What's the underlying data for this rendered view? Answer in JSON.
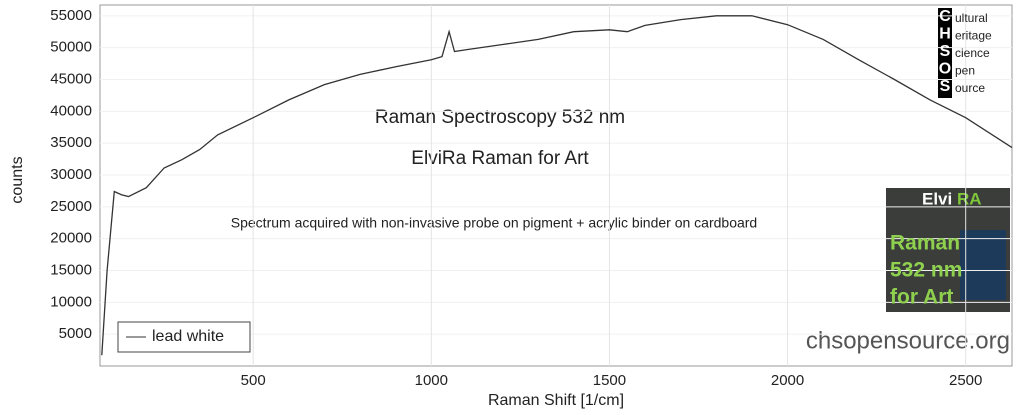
{
  "chart_data": {
    "type": "line",
    "x_label": "Raman Shift [1/cm]",
    "y_label": "counts",
    "annotations": [
      "Raman Spectroscopy 532 nm",
      "ElviRa Raman for Art",
      "Spectrum acquired with non-invasive probe on pigment + acrylic binder on cardboard"
    ],
    "x": [
      75,
      90,
      110,
      130,
      150,
      200,
      250,
      300,
      350,
      400,
      500,
      600,
      700,
      800,
      900,
      1000,
      1030,
      1050,
      1065,
      1100,
      1200,
      1300,
      1400,
      1500,
      1550,
      1600,
      1700,
      1800,
      1900,
      2000,
      2100,
      2200,
      2300,
      2400,
      2500,
      2630
    ],
    "series": [
      {
        "name": "lead white",
        "color": "#333333",
        "values": [
          1700,
          15000,
          27400,
          26900,
          26600,
          28000,
          31100,
          32400,
          34000,
          36300,
          39000,
          41800,
          44200,
          45800,
          47000,
          48100,
          48600,
          52500,
          49400,
          49700,
          50500,
          51300,
          52500,
          52800,
          52500,
          53500,
          54400,
          55000,
          55000,
          53600,
          51300,
          48100,
          45000,
          41800,
          39000,
          34300
        ]
      }
    ],
    "xlim": [
      70,
      2630
    ],
    "ylim": [
      0,
      56700
    ],
    "xticks": [
      500,
      1000,
      1500,
      2000,
      2500
    ],
    "yticks": [
      5000,
      10000,
      15000,
      20000,
      25000,
      30000,
      35000,
      40000,
      45000,
      50000,
      55000
    ],
    "grid": true,
    "legend": "lower left"
  },
  "logo": {
    "letters": [
      "C",
      "H",
      "S",
      "O",
      "S"
    ],
    "words": [
      "ultural",
      "eritage",
      "cience",
      "pen",
      "ource"
    ]
  },
  "badge": {
    "title_a": "Elvi",
    "title_b": "RA",
    "lines": [
      "Raman",
      "532 nm",
      "for Art"
    ]
  },
  "footer": "chsopensource.org"
}
